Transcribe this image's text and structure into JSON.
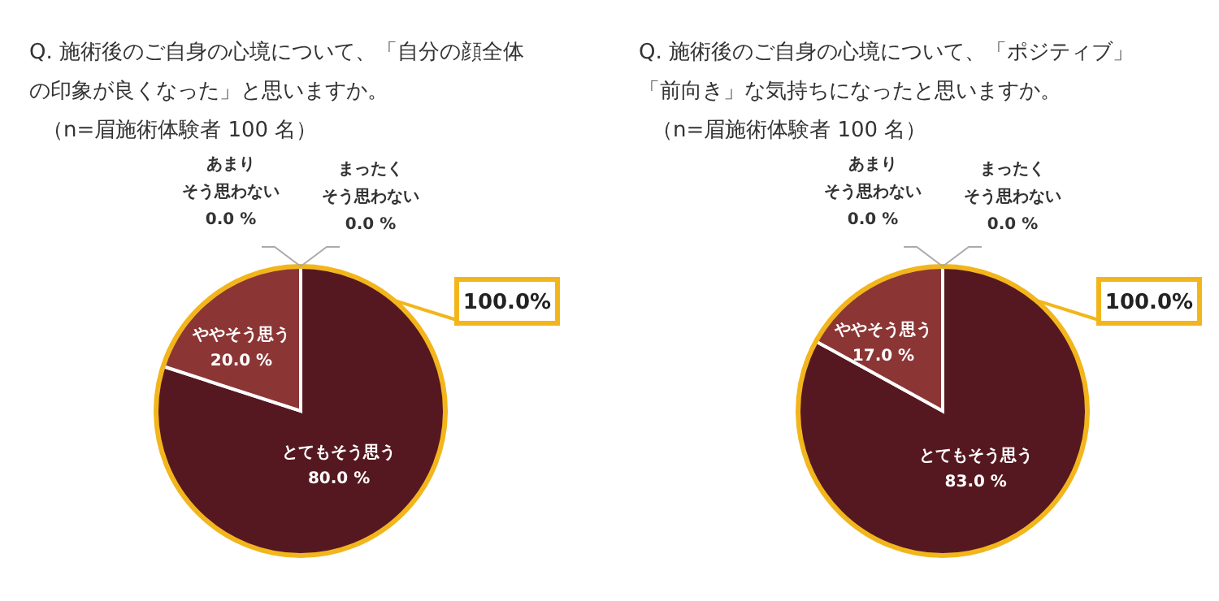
{
  "chart_data": [
    {
      "type": "pie",
      "title": "Q. 施術後のご自身の心境について、「自分の顔全体の印象が良くなった」と思いますか。",
      "subtitle": "（n=眉施術体験者 100 名）",
      "categories": [
        "とてもそう思う",
        "ややそう思う",
        "あまりそう思わない",
        "まったくそう思わない"
      ],
      "values": [
        80,
        20,
        0,
        0
      ],
      "value_labels": [
        "80.0 %",
        "20.0 %",
        "0.0 %",
        "0.0 %"
      ],
      "colors": [
        "#561820",
        "#8b3535",
        "#8b3535",
        "#561820"
      ],
      "annotations": [
        "100.0%"
      ]
    },
    {
      "type": "pie",
      "title": "Q. 施術後のご自身の心境について、「ポジティブ」「前向き」な気持ちになったと思いますか。",
      "subtitle": "（n=眉施術体験者 100 名）",
      "categories": [
        "とてもそう思う",
        "ややそう思う",
        "あまりそう思わない",
        "まったくそう思わない"
      ],
      "values": [
        83,
        17,
        0,
        0
      ],
      "value_labels": [
        "83.0 %",
        "17.0 %",
        "0.0 %",
        "0.0 %"
      ],
      "colors": [
        "#561820",
        "#8b3535",
        "#8b3535",
        "#561820"
      ],
      "annotations": [
        "100.0%"
      ]
    }
  ]
}
